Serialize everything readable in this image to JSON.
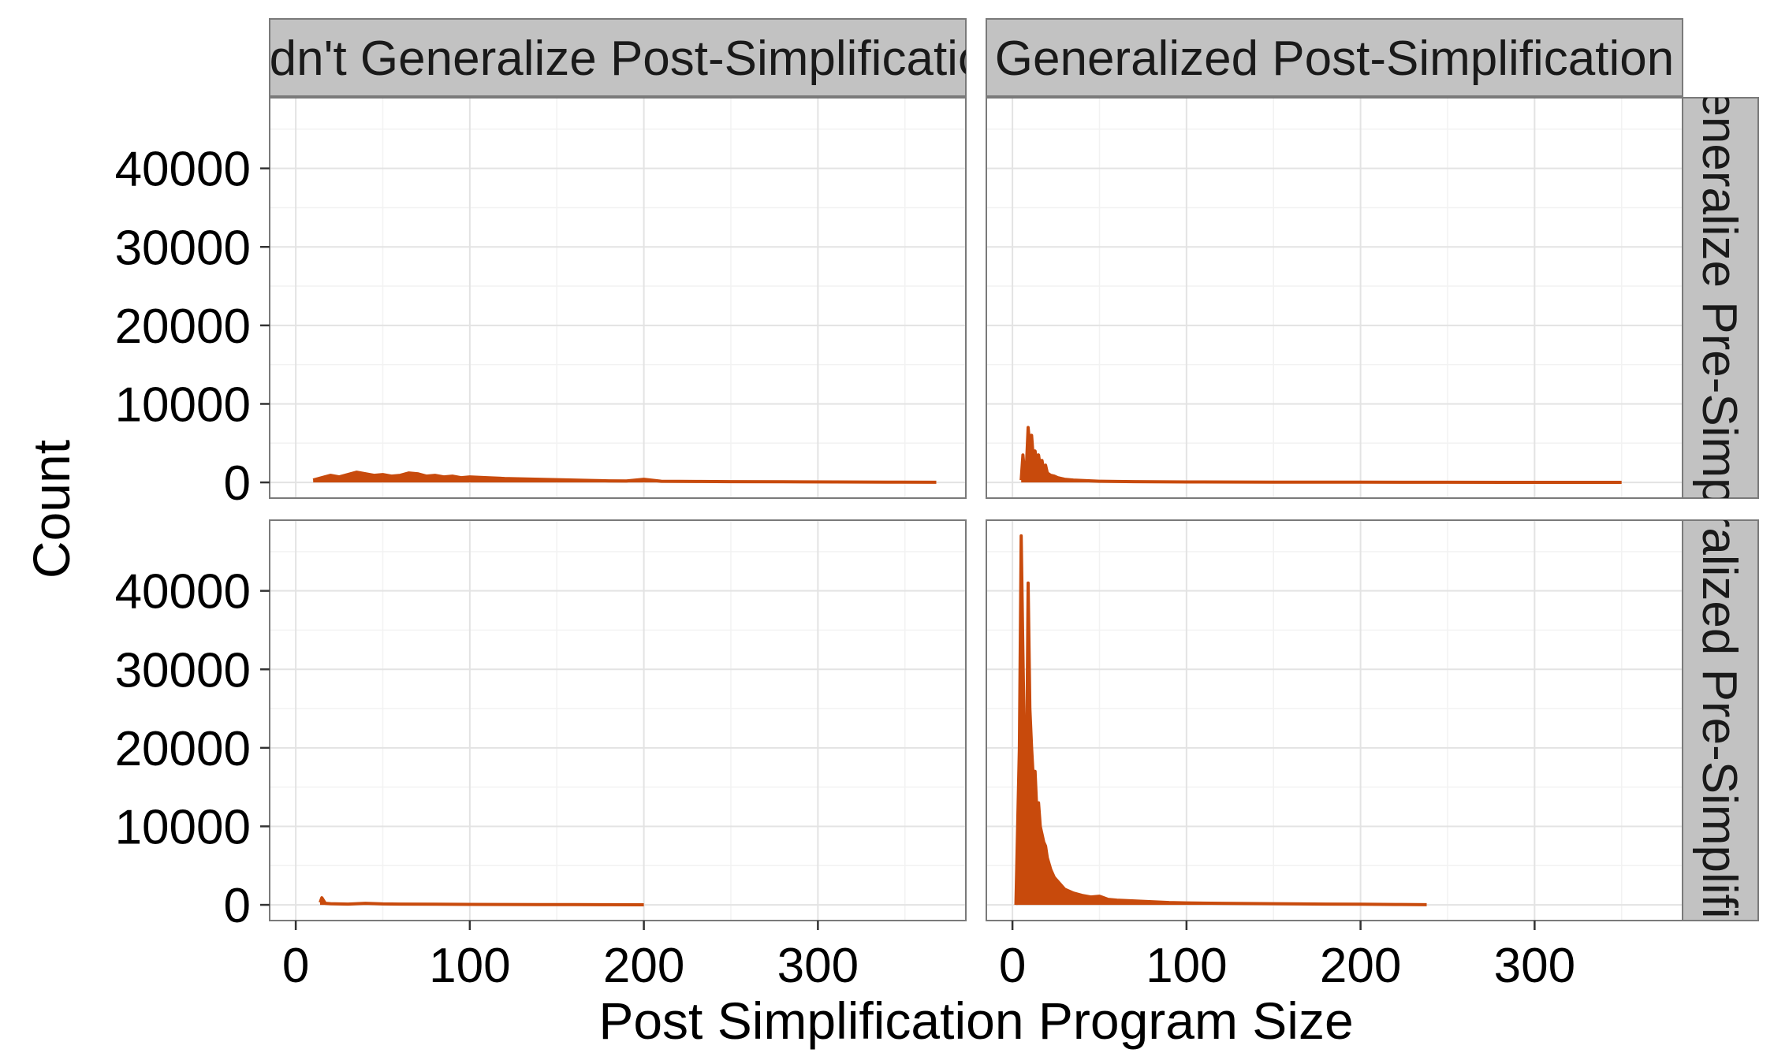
{
  "colors": {
    "series": "#c84a0c",
    "strip_fill": "#c2c2c2",
    "panel_border": "#7a7a7a",
    "grid_major": "#e3e3e3",
    "grid_minor": "#f2f2f2"
  },
  "chart_data": {
    "type": "line",
    "xlabel": "Post Simplification Program Size",
    "ylabel": "Count",
    "xlim": [
      -15,
      385
    ],
    "ylim": [
      -2000,
      49000
    ],
    "x_ticks": [
      0,
      100,
      200,
      300
    ],
    "y_ticks": [
      0,
      10000,
      20000,
      30000,
      40000
    ],
    "grid": true,
    "col_strips": [
      "Didn't Generalize Post-Simplification",
      "Generalized Post-Simplification"
    ],
    "row_strips": [
      "Didn't Generalize Pre-Simplification",
      "Generalized Pre-Simplification"
    ],
    "panels": [
      {
        "row": 0,
        "col": 0,
        "x": [
          10,
          15,
          20,
          25,
          30,
          35,
          40,
          45,
          50,
          55,
          60,
          65,
          70,
          75,
          80,
          85,
          90,
          95,
          100,
          110,
          120,
          130,
          140,
          150,
          160,
          170,
          180,
          190,
          200,
          210,
          230,
          250,
          280,
          310,
          340,
          368
        ],
        "values": [
          300,
          600,
          900,
          700,
          1000,
          1300,
          1100,
          900,
          1000,
          800,
          900,
          1200,
          1100,
          800,
          900,
          700,
          800,
          600,
          700,
          600,
          500,
          450,
          400,
          350,
          300,
          250,
          200,
          180,
          400,
          150,
          120,
          100,
          80,
          60,
          40,
          20
        ]
      },
      {
        "row": 0,
        "col": 1,
        "x": [
          5,
          6,
          7,
          8,
          9,
          10,
          11,
          12,
          13,
          14,
          15,
          16,
          17,
          18,
          19,
          20,
          22,
          24,
          26,
          28,
          30,
          35,
          40,
          45,
          50,
          60,
          70,
          80,
          100,
          150,
          200,
          250,
          300,
          350
        ],
        "values": [
          300,
          3500,
          1000,
          2000,
          7000,
          4500,
          6000,
          3000,
          4000,
          2500,
          3500,
          2000,
          2800,
          1500,
          2200,
          1200,
          900,
          800,
          600,
          500,
          400,
          300,
          250,
          200,
          150,
          120,
          100,
          80,
          60,
          40,
          30,
          20,
          10,
          5
        ]
      },
      {
        "row": 1,
        "col": 0,
        "x": [
          14,
          15,
          17,
          20,
          30,
          40,
          50,
          60,
          80,
          100,
          120,
          140,
          160,
          180,
          200
        ],
        "values": [
          300,
          900,
          200,
          150,
          100,
          200,
          120,
          100,
          80,
          60,
          50,
          40,
          30,
          20,
          10
        ]
      },
      {
        "row": 1,
        "col": 1,
        "x": [
          2,
          4,
          5,
          6,
          7,
          8,
          9,
          10,
          11,
          12,
          13,
          14,
          15,
          16,
          17,
          18,
          19,
          20,
          22,
          24,
          26,
          28,
          30,
          35,
          40,
          45,
          50,
          55,
          60,
          70,
          80,
          90,
          100,
          120,
          150,
          180,
          200,
          220,
          238
        ],
        "values": [
          0,
          20000,
          47000,
          32000,
          18000,
          14000,
          41000,
          25000,
          20000,
          16000,
          17000,
          12000,
          13000,
          10000,
          9000,
          8000,
          7500,
          6000,
          4500,
          3500,
          3000,
          2500,
          2000,
          1500,
          1200,
          1000,
          1100,
          700,
          600,
          500,
          400,
          300,
          250,
          200,
          150,
          100,
          80,
          50,
          20
        ]
      }
    ]
  }
}
